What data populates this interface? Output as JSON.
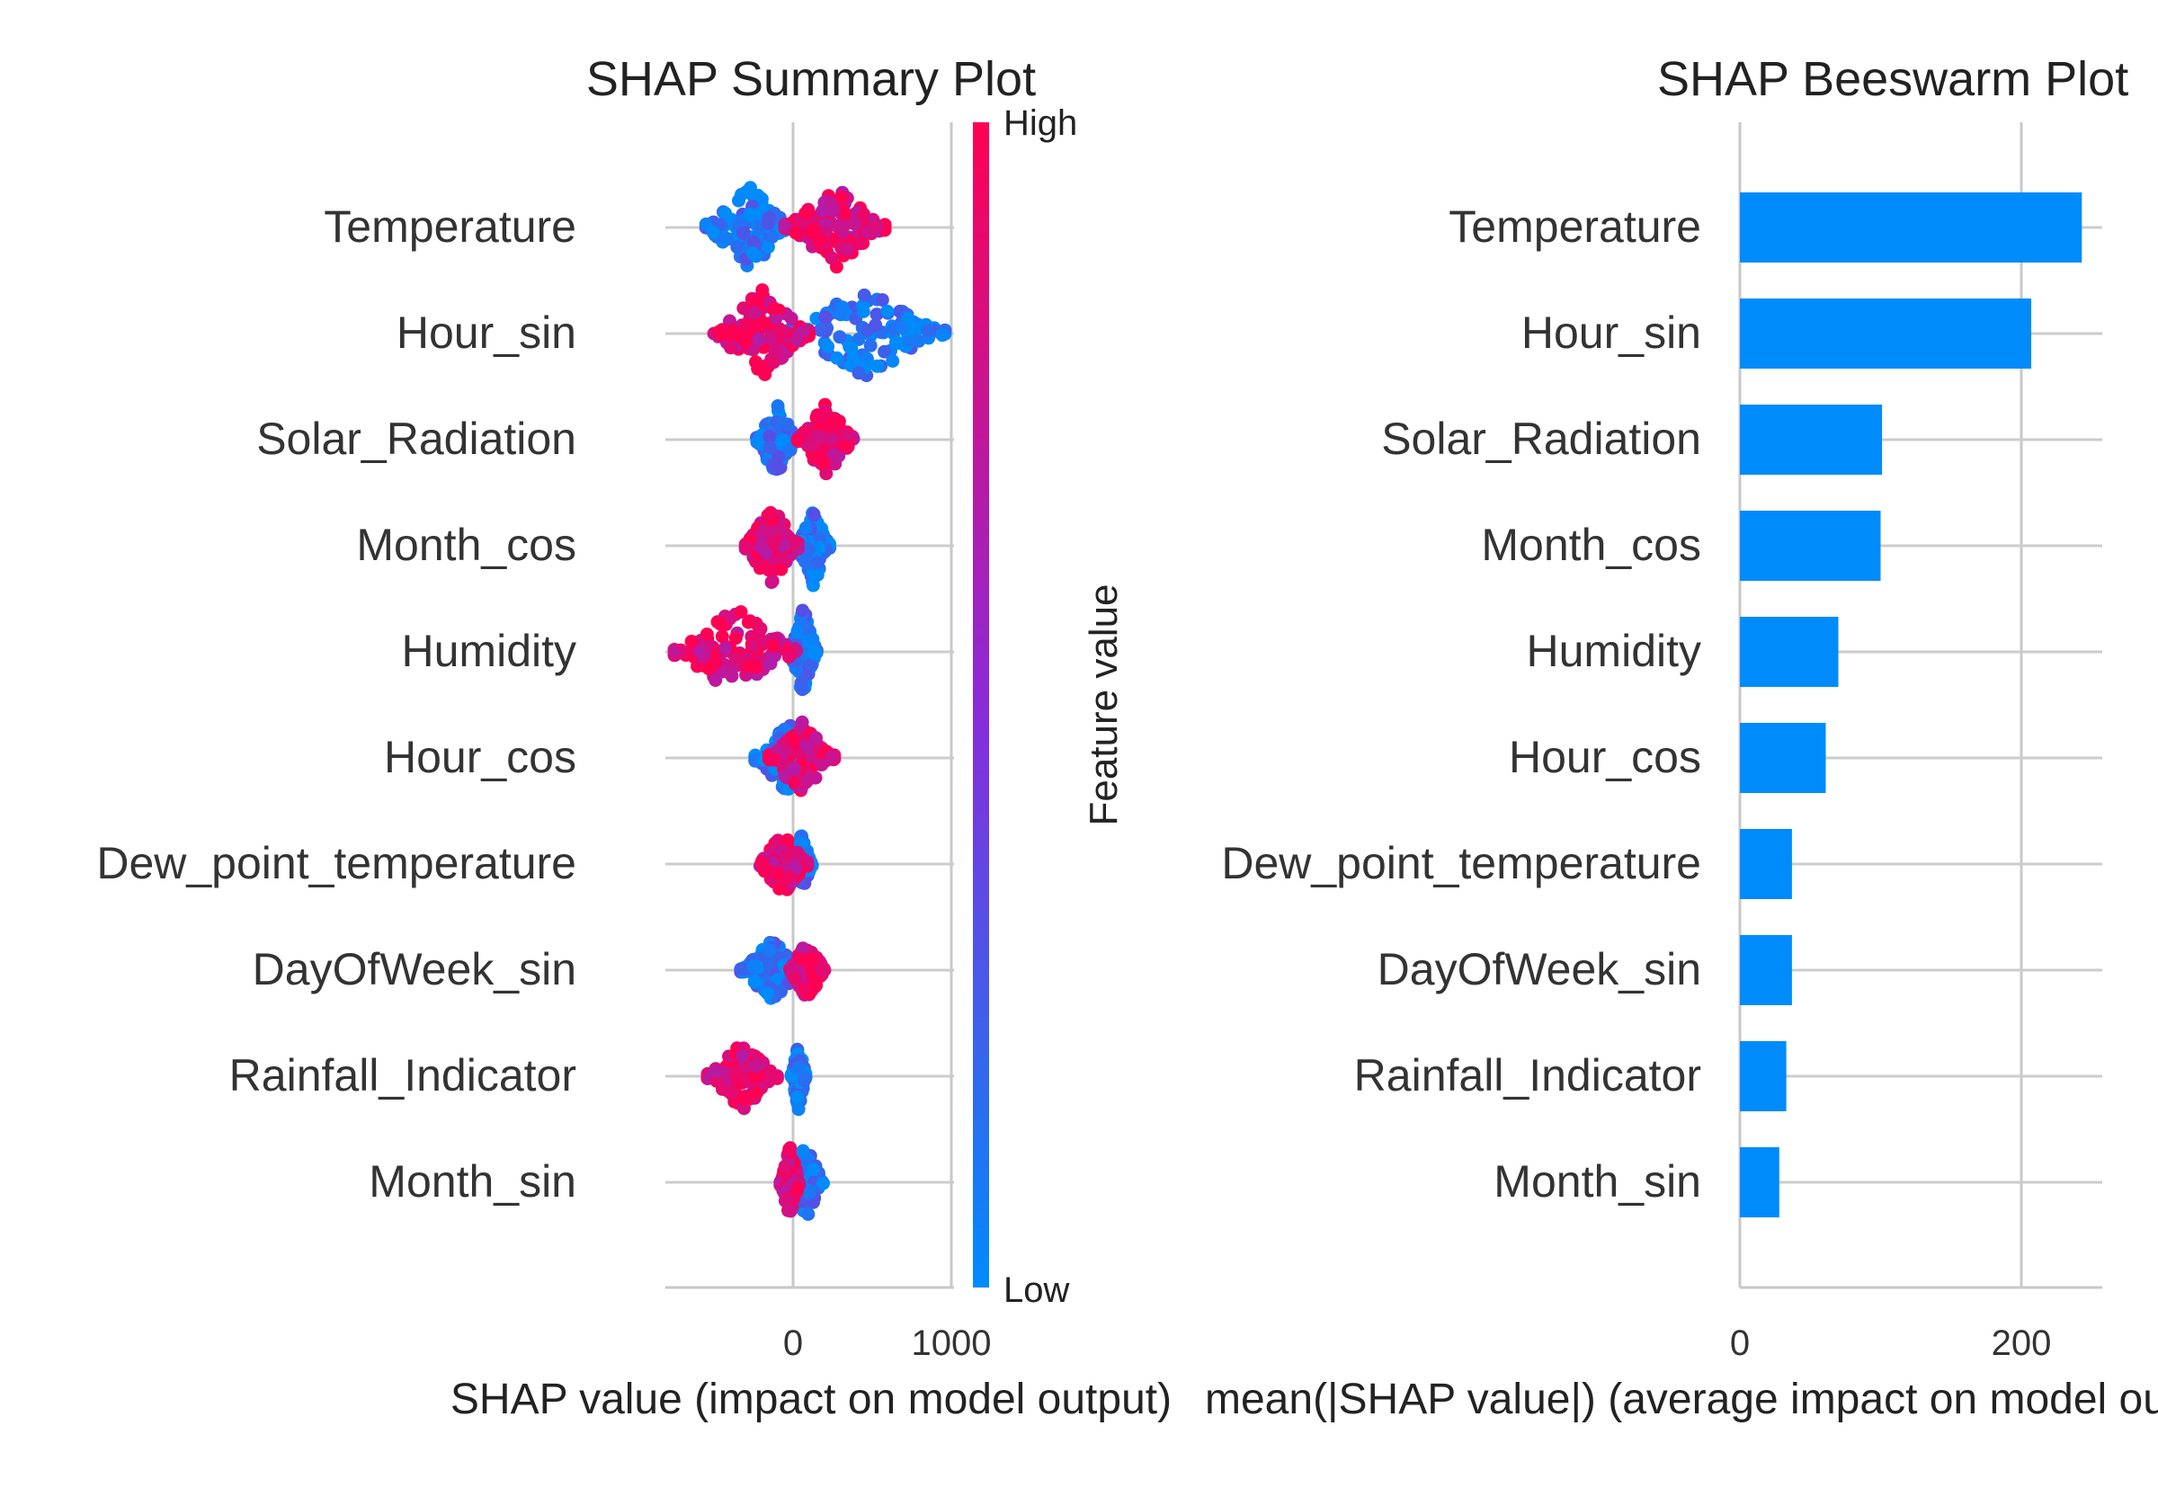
{
  "chart_data": [
    {
      "type": "scatter",
      "subtype": "shap-beeswarm",
      "title": "SHAP Summary Plot",
      "xlabel": "SHAP value (impact on model output)",
      "xticks": [
        0,
        1000
      ],
      "xlim": [
        -800,
        1000
      ],
      "grid": true,
      "features": [
        "Temperature",
        "Hour_sin",
        "Solar_Radiation",
        "Month_cos",
        "Humidity",
        "Hour_cos",
        "Dew_point_temperature",
        "DayOfWeek_sin",
        "Rainfall_Indicator",
        "Month_sin"
      ],
      "feature_distributions": [
        {
          "feature": "Temperature",
          "min": -550,
          "max": 580,
          "low_range": [
            -550,
            0
          ],
          "high_range": [
            -50,
            580
          ],
          "spread": 24
        },
        {
          "feature": "Hour_sin",
          "min": -500,
          "max": 960,
          "low_range": [
            -80,
            960
          ],
          "high_range": [
            -500,
            100
          ],
          "spread": 26
        },
        {
          "feature": "Solar_Radiation",
          "min": -230,
          "max": 380,
          "low_range": [
            -230,
            20
          ],
          "high_range": [
            30,
            380
          ],
          "spread": 22
        },
        {
          "feature": "Month_cos",
          "min": -300,
          "max": 230,
          "low_range": [
            30,
            230
          ],
          "high_range": [
            -300,
            30
          ],
          "spread": 24
        },
        {
          "feature": "Humidity",
          "min": -750,
          "max": 150,
          "low_range": [
            -20,
            150
          ],
          "high_range": [
            -750,
            20
          ],
          "spread": 26
        },
        {
          "feature": "Hour_cos",
          "min": -240,
          "max": 260,
          "low_range": [
            -240,
            200
          ],
          "high_range": [
            -150,
            260
          ],
          "spread": 22
        },
        {
          "feature": "Dew_point_temperature",
          "min": -220,
          "max": 120,
          "low_range": [
            -20,
            120
          ],
          "high_range": [
            -220,
            90
          ],
          "spread": 18
        },
        {
          "feature": "DayOfWeek_sin",
          "min": -330,
          "max": 200,
          "low_range": [
            -330,
            60
          ],
          "high_range": [
            -20,
            200
          ],
          "spread": 18
        },
        {
          "feature": "Rainfall_Indicator",
          "min": -540,
          "max": 80,
          "low_range": [
            -10,
            80
          ],
          "high_range": [
            -540,
            -100
          ],
          "spread": 20
        },
        {
          "feature": "Month_sin",
          "min": -80,
          "max": 190,
          "low_range": [
            -30,
            190
          ],
          "high_range": [
            -80,
            40
          ],
          "spread": 22
        }
      ],
      "colorbar": {
        "label": "Feature value",
        "high_label": "High",
        "low_label": "Low",
        "low_color": "#008bfb",
        "high_color": "#ff0052"
      }
    },
    {
      "type": "bar",
      "orientation": "horizontal",
      "title": "SHAP Beeswarm Plot",
      "xlabel": "mean(|SHAP value|) (average impact on model output)",
      "xticks": [
        0,
        200
      ],
      "xlim": [
        0,
        257
      ],
      "grid": true,
      "categories": [
        "Temperature",
        "Hour_sin",
        "Solar_Radiation",
        "Month_cos",
        "Humidity",
        "Hour_cos",
        "Dew_point_temperature",
        "DayOfWeek_sin",
        "Rainfall_Indicator",
        "Month_sin"
      ],
      "values": [
        243,
        207,
        101,
        100,
        70,
        61,
        37,
        37,
        33,
        28
      ],
      "bar_color": "#008bfb"
    }
  ]
}
